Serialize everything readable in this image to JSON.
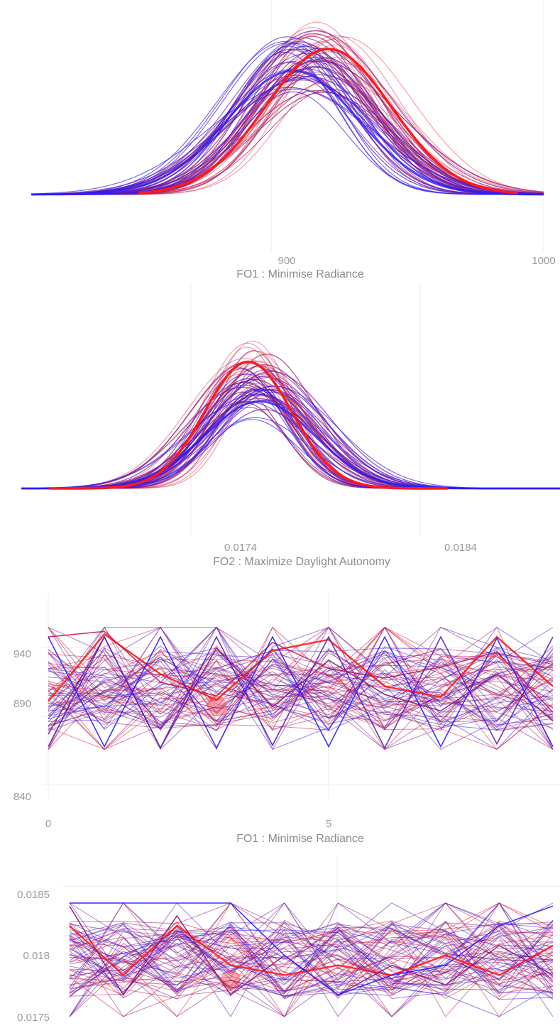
{
  "colors": {
    "red": "#ff1a1a",
    "blue": "#2a1cff",
    "purple": "#8b1a7a",
    "grid": "#eeeeee",
    "tick_text": "#9a9a9a"
  },
  "chart_data": [
    {
      "type": "area",
      "subtype": "density curves",
      "xlabel": "FO1 : Minimise Radiance",
      "xticks": [
        "900",
        "1000"
      ],
      "xtick_values": [
        900,
        1000
      ],
      "xlim": [
        812,
        1000
      ],
      "grid": true,
      "series": [
        {
          "values": {
            "mean": 908,
            "sd": 24,
            "peak": 0.85
          }
        },
        {
          "values": {
            "mean": 921,
            "sd": 23,
            "peak": 1.0
          }
        }
      ]
    },
    {
      "type": "area",
      "subtype": "density curves",
      "xlabel": "FO2 : Maximize Daylight Autonomy",
      "xticks": [
        "0.0174",
        "0.0184"
      ],
      "xtick_values": [
        0.0174,
        0.0184
      ],
      "xlim": [
        0.01666,
        0.01901
      ],
      "grid": true,
      "series": [
        {
          "values": {
            "mean": 0.0177,
            "sd": 0.00024,
            "peak": 0.55
          }
        },
        {
          "values": {
            "mean": 0.01765,
            "sd": 0.00019,
            "peak": 0.8
          }
        }
      ]
    },
    {
      "type": "line",
      "subtype": "trajectories per iteration",
      "xlabel": "FO1 : Minimise Radiance",
      "xticks": [
        "0",
        "5"
      ],
      "xtick_values": [
        0,
        5
      ],
      "xlim": [
        0,
        9
      ],
      "yticks": [
        "940",
        "890",
        "840"
      ],
      "ytick_values": [
        940,
        890,
        840
      ],
      "ylim": [
        830,
        975
      ],
      "grid": true,
      "highlight_point": {
        "x": 3,
        "y": 898
      },
      "series": [
        {
          "values": [
            901,
            950,
            921,
            902,
            938,
            946,
            912,
            904,
            948,
            912
          ]
        },
        {
          "values": [
            948,
            952,
            915,
            905,
            944,
            925,
            918,
            926,
            937,
            893
          ]
        },
        {
          "values": [
            877,
            948,
            867,
            940,
            897,
            931,
            906,
            894,
            921,
            887
          ]
        },
        {
          "values": [
            868,
            948,
            867,
            948,
            869,
            948,
            867,
            948,
            870,
            948
          ]
        },
        {
          "values": [
            948,
            868,
            948,
            867,
            948,
            868,
            948,
            868,
            947,
            868
          ]
        }
      ]
    },
    {
      "type": "line",
      "subtype": "trajectories per iteration",
      "xlabel": "",
      "yticks": [
        "0.0185",
        "0.018",
        "0.0175"
      ],
      "ytick_values": [
        0.0185,
        0.018,
        0.0175
      ],
      "ylim": [
        0.0171,
        0.01874
      ],
      "grid": true,
      "highlight_point": {
        "x": 3,
        "y": 0.01755
      },
      "series": [
        {
          "values": [
            0.0181,
            0.0176,
            0.0181,
            0.0177,
            0.0176,
            0.0177,
            0.0176,
            0.0178,
            0.0176,
            0.0179
          ]
        },
        {
          "values": [
            0.0183,
            0.0174,
            0.0182,
            0.0174,
            0.0178,
            0.0174,
            0.0177,
            0.0175,
            0.0179,
            0.0176
          ]
        },
        {
          "values": [
            0.01833,
            0.01833,
            0.01833,
            0.01833,
            0.0178,
            0.0174,
            0.0176,
            0.0177,
            0.0181,
            0.0183
          ]
        }
      ]
    }
  ]
}
